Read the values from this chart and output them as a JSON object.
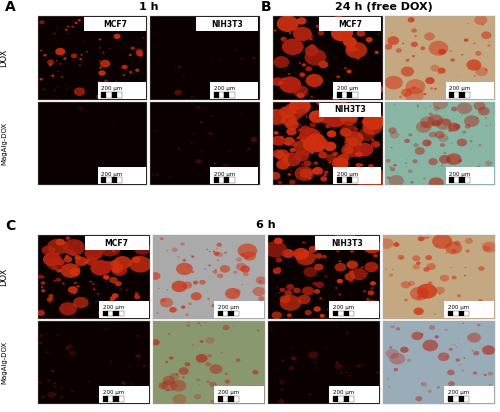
{
  "panel_A_label": "A",
  "panel_B_label": "B",
  "panel_C_label": "C",
  "title_A": "1 h",
  "title_B": "24 h (free DOX)",
  "title_C": "6 h",
  "cell_label_A_left": "MCF7",
  "cell_label_A_right": "NIH3T3",
  "cell_label_B_top": "MCF7",
  "cell_label_B_bottom": "NIH3T3",
  "cell_label_C_left": "MCF7",
  "cell_label_C_right": "NIH3T3",
  "row_label_1": "DOX",
  "row_label_2": "MagAlg-DOX",
  "scale_text": "200 μm",
  "bg_black": "#0a0000",
  "bg_tan": "#c4a882",
  "bg_teal": "#89b5a5",
  "bg_gray_green": "#8a9870",
  "bg_blue_gray": "#9aacb8",
  "red_bright": "#d03010",
  "red_medium": "#b02010",
  "red_dark": "#601008",
  "red_faint": "#400808"
}
